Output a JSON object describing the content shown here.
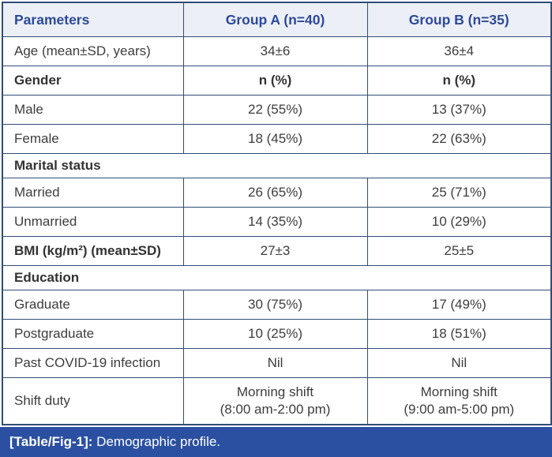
{
  "colors": {
    "border": "#2e4e78",
    "header_background": "#edeff7",
    "header_text": "#2b4a9b",
    "body_text": "#3d3d3d",
    "caption_background": "#2b50a2",
    "caption_text": "#ffffff"
  },
  "table": {
    "columns": [
      "Parameters",
      "Group A (n=40)",
      "Group B (n=35)"
    ],
    "rows": [
      {
        "type": "data",
        "bold": false,
        "cells": [
          "Age (mean±SD, years)",
          "34±6",
          "36±4"
        ]
      },
      {
        "type": "data",
        "bold": true,
        "cells": [
          "Gender",
          "n (%)",
          "n (%)"
        ]
      },
      {
        "type": "data",
        "bold": false,
        "cells": [
          "Male",
          "22 (55%)",
          "13 (37%)"
        ]
      },
      {
        "type": "data",
        "bold": false,
        "cells": [
          "Female",
          "18 (45%)",
          "22 (63%)"
        ]
      },
      {
        "type": "section",
        "label": "Marital status"
      },
      {
        "type": "data",
        "bold": false,
        "cells": [
          "Married",
          "26 (65%)",
          "25 (71%)"
        ]
      },
      {
        "type": "data",
        "bold": false,
        "cells": [
          "Unmarried",
          "14 (35%)",
          "10 (29%)"
        ]
      },
      {
        "type": "data",
        "bold": "label",
        "cells": [
          "BMI (kg/m²) (mean±SD)",
          "27±3",
          "25±5"
        ]
      },
      {
        "type": "section",
        "label": "Education"
      },
      {
        "type": "data",
        "bold": false,
        "cells": [
          "Graduate",
          "30 (75%)",
          "17 (49%)"
        ]
      },
      {
        "type": "data",
        "bold": false,
        "cells": [
          "Postgraduate",
          "10 (25%)",
          "18 (51%)"
        ]
      },
      {
        "type": "data",
        "bold": false,
        "cells": [
          "Past COVID-19 infection",
          "Nil",
          "Nil"
        ]
      },
      {
        "type": "data",
        "bold": false,
        "cells": [
          "Shift duty",
          "Morning shift\n(8:00 am-2:00 pm)",
          "Morning shift\n(9:00 am-5:00 pm)"
        ]
      }
    ]
  },
  "caption": {
    "tag": "[Table/Fig-1]:",
    "text": " Demographic profile."
  }
}
